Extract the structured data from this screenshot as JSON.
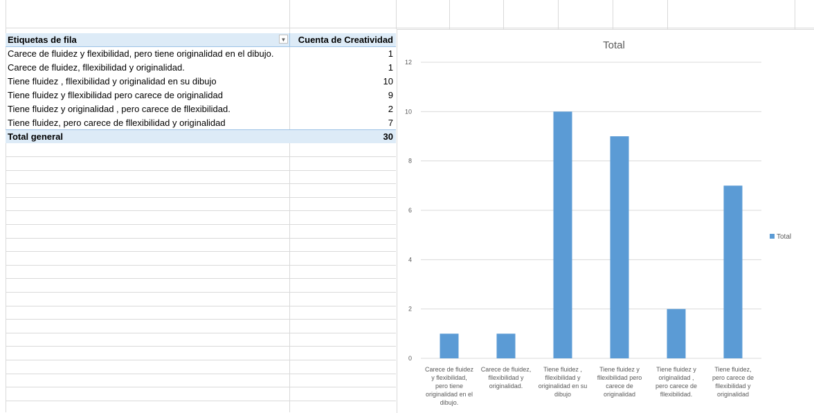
{
  "pivot": {
    "header_label": "Etiquetas de fila",
    "header_value": "Cuenta de Creatividad",
    "rows": [
      {
        "label": "Carece de fluidez y flexibilidad, pero tiene originalidad en el dibujo.",
        "value": "1"
      },
      {
        "label": "Carece de fluidez,  fllexibilidad y originalidad.",
        "value": "1"
      },
      {
        "label": "Tiene fluidez , fllexibilidad y originalidad en su dibujo",
        "value": "10"
      },
      {
        "label": "Tiene fluidez y fllexibilidad pero carece de originalidad",
        "value": "9"
      },
      {
        "label": "Tiene fluidez y originalidad , pero carece de fllexibilidad.",
        "value": "2"
      },
      {
        "label": "Tiene fluidez, pero carece de fllexibilidad y originalidad",
        "value": "7"
      }
    ],
    "total_label": "Total general",
    "total_value": "30"
  },
  "chart_data": {
    "type": "bar",
    "title": "Total",
    "categories": [
      [
        "Carece de fluidez",
        "y flexibilidad,",
        "pero tiene",
        "originalidad en el",
        "dibujo."
      ],
      [
        "Carece de fluidez,",
        "fllexibilidad y",
        "originalidad."
      ],
      [
        "Tiene fluidez ,",
        "fllexibilidad y",
        "originalidad en su",
        "dibujo"
      ],
      [
        "Tiene fluidez y",
        "fllexibilidad pero",
        "carece de",
        "originalidad"
      ],
      [
        "Tiene fluidez y",
        "originalidad ,",
        "pero carece de",
        "fllexibilidad."
      ],
      [
        "Tiene fluidez,",
        "pero carece de",
        "fllexibilidad y",
        "originalidad"
      ]
    ],
    "series": [
      {
        "name": "Total",
        "values": [
          1,
          1,
          10,
          9,
          2,
          7
        ]
      }
    ],
    "ylim": [
      0,
      12
    ],
    "yticks": [
      0,
      2,
      4,
      6,
      8,
      10,
      12
    ],
    "grid": true,
    "legend": "right",
    "bar_color": "#5b9bd5",
    "grid_color": "#d9d9d9"
  }
}
